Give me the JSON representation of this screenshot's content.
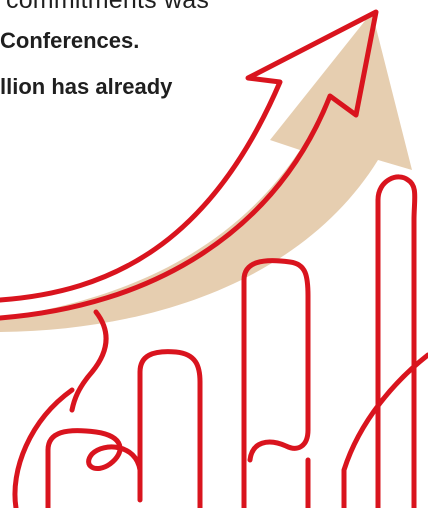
{
  "text": {
    "line1": "commitments was",
    "line2": "Conferences.",
    "line3": "llion has already"
  },
  "colors": {
    "accent_red": "#d9141e",
    "arrow_shadow": "#e6ceb0",
    "text": "#1f1f1f",
    "background": "#ffffff"
  }
}
